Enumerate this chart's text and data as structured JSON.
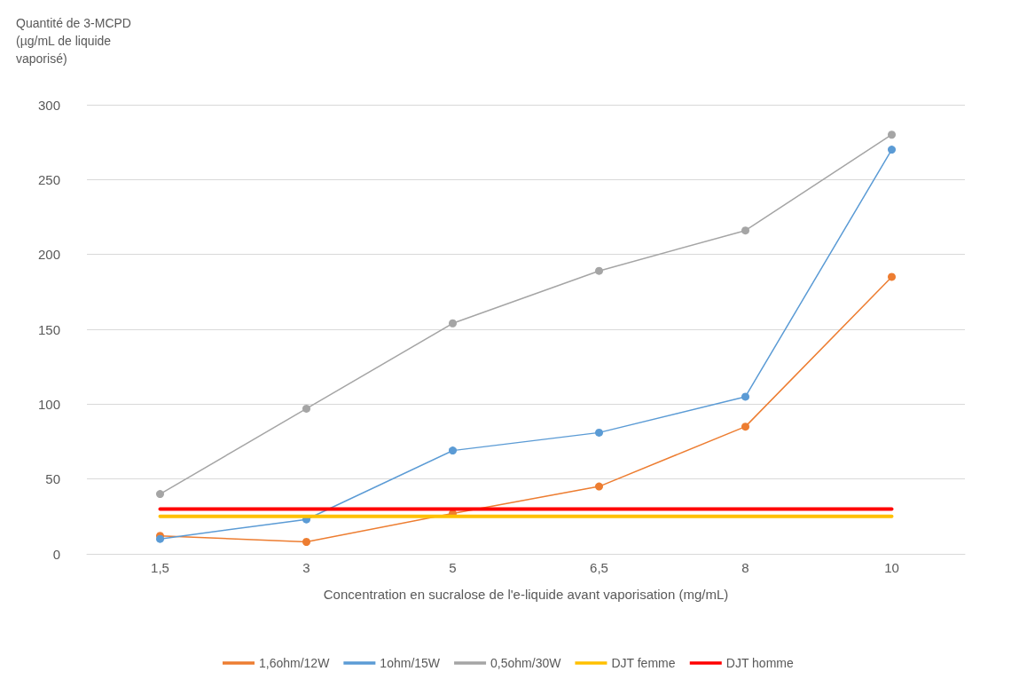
{
  "chart_data": {
    "type": "line",
    "ylabel": "Quantité de 3-MCPD\n(µg/mL de liquide\nvaporisé)",
    "xlabel": "Concentration en sucralose de l'e-liquide avant vaporisation (mg/mL)",
    "categories": [
      "1,5",
      "3",
      "5",
      "6,5",
      "8",
      "10"
    ],
    "series": [
      {
        "name": "1,6ohm/12W",
        "color": "#ed7d31",
        "marker": "circle",
        "values": [
          12,
          8,
          27,
          45,
          85,
          185
        ]
      },
      {
        "name": "1ohm/15W",
        "color": "#5b9bd5",
        "marker": "circle",
        "values": [
          10,
          23,
          69,
          81,
          105,
          270
        ]
      },
      {
        "name": "0,5ohm/30W",
        "color": "#a5a5a5",
        "marker": "circle",
        "values": [
          40,
          97,
          154,
          189,
          216,
          280
        ]
      },
      {
        "name": "DJT femme",
        "color": "#ffc000",
        "marker": "none",
        "values": [
          25,
          25,
          25,
          25,
          25,
          25
        ]
      },
      {
        "name": "DJT homme",
        "color": "#ff0000",
        "marker": "none",
        "values": [
          30,
          30,
          30,
          30,
          30,
          30
        ]
      }
    ],
    "ylim": [
      0,
      300
    ],
    "yticks": [
      0,
      50,
      100,
      150,
      200,
      250,
      300
    ],
    "grid": "y",
    "legend": "bottom"
  }
}
